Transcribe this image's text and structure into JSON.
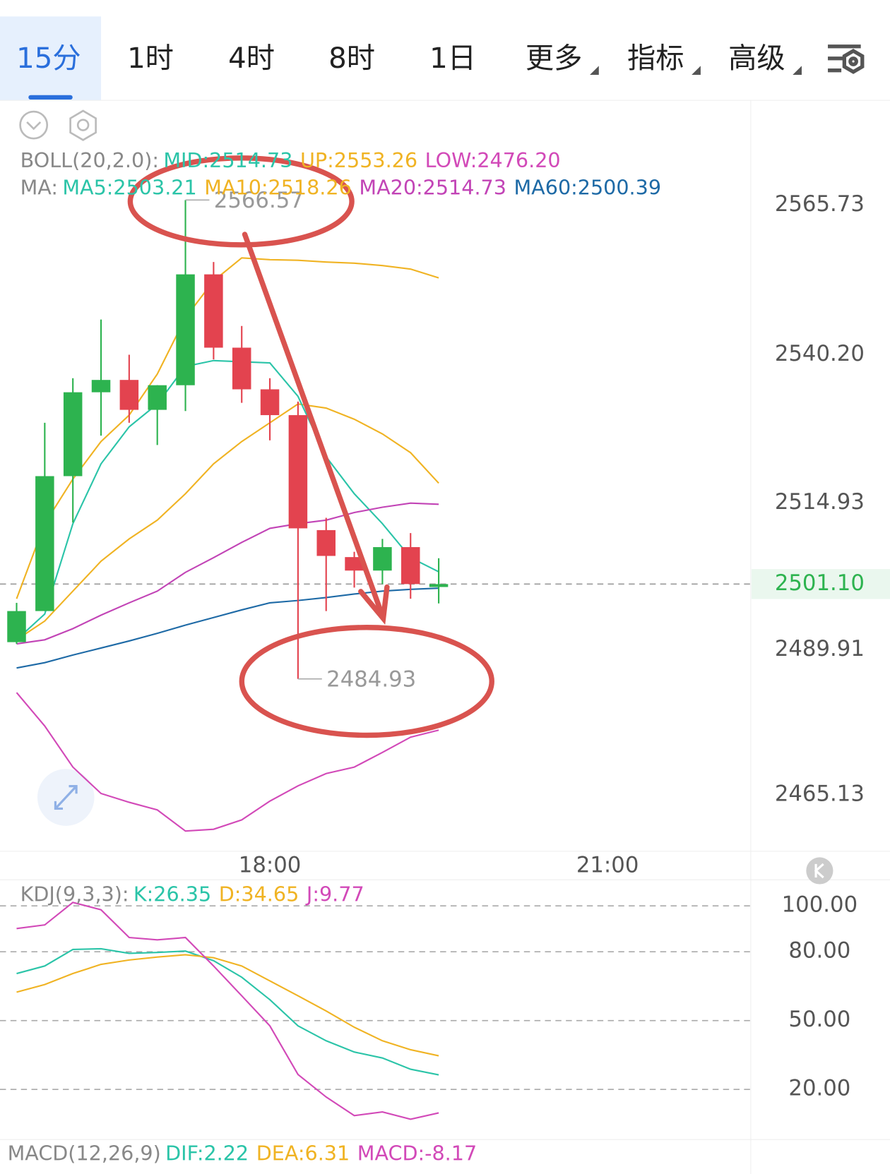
{
  "tabs": [
    "15分",
    "1时",
    "4时",
    "8时",
    "1日",
    "更多",
    "指标",
    "高级"
  ],
  "active_tab": 0,
  "dropdown_tabs": [
    5,
    6,
    7
  ],
  "chart_data": [
    {
      "type": "candlestick",
      "legend": [
        {
          "title": "BOLL(20,2.0):",
          "items": [
            {
              "text": "MID:2514.73",
              "color": "#2bc4a8"
            },
            {
              "text": "UP:2553.26",
              "color": "#f0b323"
            },
            {
              "text": "LOW:2476.20",
              "color": "#d249b8"
            }
          ]
        },
        {
          "title": "MA:",
          "items": [
            {
              "text": "MA5:2503.21",
              "color": "#2bc4a8"
            },
            {
              "text": "MA10:2518.26",
              "color": "#f0b323"
            },
            {
              "text": "MA20:2514.73",
              "color": "#c244b6"
            },
            {
              "text": "MA60:2500.39",
              "color": "#1e6aa6"
            }
          ]
        }
      ],
      "x": [
        0,
        1,
        2,
        3,
        4,
        5,
        6,
        7,
        8,
        9,
        10,
        11,
        12,
        13,
        14,
        15
      ],
      "open": [
        2491.2,
        2496.5,
        2519.5,
        2533.8,
        2535.9,
        2530.8,
        2535.0,
        2553.9,
        2541.4,
        2534.3,
        2529.9,
        2510.3,
        2505.7,
        2503.4,
        2507.4,
        2500.6
      ],
      "high": [
        2497.9,
        2528.6,
        2536.2,
        2546.2,
        2540.2,
        2535.0,
        2566.57,
        2556.0,
        2545.1,
        2536.2,
        2532.2,
        2512.4,
        2506.6,
        2508.8,
        2509.8,
        2505.5
      ],
      "low": [
        2490.9,
        2496.5,
        2511.6,
        2526.4,
        2528.6,
        2524.8,
        2530.6,
        2539.4,
        2532.0,
        2525.6,
        2484.93,
        2496.5,
        2500.5,
        2501.1,
        2498.6,
        2497.8
      ],
      "close": [
        2496.5,
        2519.5,
        2533.8,
        2535.9,
        2530.8,
        2535.0,
        2553.9,
        2541.4,
        2534.3,
        2529.9,
        2510.6,
        2505.9,
        2503.4,
        2507.4,
        2501.1,
        2501.1
      ],
      "up_color": "#2db34f",
      "down_color": "#e3434f",
      "series": [
        {
          "color": "#f0b323",
          "values": [
            2498.6,
            2511.4,
            2519.0,
            2525.4,
            2529.9,
            2536.9,
            2546.5,
            2552.8,
            2556.7,
            2556.4,
            2556.3,
            2556.0,
            2555.8,
            2555.4,
            2554.8,
            2553.3
          ]
        },
        {
          "color": "#f0b323",
          "values": [
            2491.6,
            2494.8,
            2499.9,
            2505.0,
            2508.8,
            2512.0,
            2516.5,
            2521.6,
            2525.4,
            2528.6,
            2531.8,
            2531.1,
            2529.2,
            2526.7,
            2523.5,
            2518.3
          ]
        },
        {
          "color": "#2bc4a8",
          "values": [
            2491.6,
            2496.0,
            2511.4,
            2521.6,
            2527.9,
            2531.8,
            2538.2,
            2539.2,
            2539.0,
            2538.8,
            2533.1,
            2522.8,
            2516.5,
            2511.4,
            2505.6,
            2503.2
          ]
        },
        {
          "color": "#c244b6",
          "values": [
            2490.9,
            2491.6,
            2493.5,
            2495.8,
            2497.9,
            2499.9,
            2503.1,
            2505.6,
            2508.2,
            2510.6,
            2511.4,
            2512.0,
            2513.3,
            2514.2,
            2514.9,
            2514.7
          ]
        },
        {
          "color": "#1e6aa6",
          "values": [
            2486.8,
            2487.7,
            2489.0,
            2490.2,
            2491.4,
            2492.7,
            2494.1,
            2495.4,
            2496.7,
            2497.9,
            2498.3,
            2498.8,
            2499.4,
            2499.9,
            2500.2,
            2500.4
          ]
        },
        {
          "color": "#d249b8",
          "values": [
            2482.6,
            2476.9,
            2469.9,
            2465.4,
            2463.9,
            2462.6,
            2459.0,
            2459.3,
            2460.9,
            2464.1,
            2466.7,
            2468.8,
            2469.9,
            2472.4,
            2475.0,
            2476.2
          ]
        }
      ],
      "xlim": [
        -0.59,
        26.09
      ],
      "xticks": [
        {
          "value": 9,
          "label": "18:00"
        },
        {
          "value": 21,
          "label": "21:00"
        }
      ],
      "ylim": [
        2455.8,
        2582.8
      ],
      "yticks": [
        2565.73,
        {
          "value": 2540.2,
          "label": "2540.20"
        },
        2514.93,
        2489.91,
        2465.13
      ],
      "last_price": {
        "value": 2501.1,
        "label": "2501.10"
      },
      "high_mark": 2566.57,
      "low_mark": 2484.93
    },
    {
      "type": "line",
      "legend": [
        {
          "title": "KDJ(9,3,3):",
          "items": [
            {
              "text": "K:26.35",
              "color": "#2bc4a8"
            },
            {
              "text": "D:34.65",
              "color": "#f0b323"
            },
            {
              "text": "J:9.77",
              "color": "#d249b8"
            }
          ]
        }
      ],
      "x": [
        0,
        1,
        2,
        3,
        4,
        5,
        6,
        7,
        8,
        9,
        10,
        11,
        12,
        13,
        14,
        15
      ],
      "series": [
        {
          "color": "#2bc4a8",
          "values": [
            70.5,
            73.8,
            81.0,
            81.3,
            79.3,
            79.7,
            80.3,
            76.1,
            68.9,
            59.1,
            47.7,
            41.2,
            36.3,
            33.7,
            28.8,
            26.35
          ]
        },
        {
          "color": "#f0b323",
          "values": [
            62.4,
            65.7,
            70.5,
            74.5,
            76.4,
            77.7,
            78.7,
            77.4,
            73.8,
            67.3,
            60.8,
            54.2,
            47.1,
            41.2,
            37.3,
            34.65
          ]
        },
        {
          "color": "#d249b8",
          "values": [
            90.1,
            91.7,
            101.5,
            98.3,
            86.2,
            85.2,
            86.2,
            73.8,
            60.8,
            47.7,
            26.5,
            16.7,
            8.6,
            10.2,
            7.0,
            9.77
          ]
        }
      ],
      "xlim": [
        -0.59,
        26.09
      ],
      "ylim": [
        -1.2,
        110.4
      ],
      "yticks": [
        {
          "value": 100,
          "label": "100.00"
        },
        {
          "value": 80,
          "label": "80.00"
        },
        {
          "value": 50,
          "label": "50.00"
        },
        {
          "value": 20,
          "label": "20.00"
        }
      ],
      "grid": "dashed"
    }
  ],
  "macd_legend": {
    "title": "MACD(12,26,9)",
    "items": [
      {
        "text": "DIF:2.22",
        "color": "#2bc4a8"
      },
      {
        "text": "DEA:6.31",
        "color": "#f0b323"
      },
      {
        "text": "MACD:-8.17",
        "color": "#d249b8"
      }
    ]
  }
}
